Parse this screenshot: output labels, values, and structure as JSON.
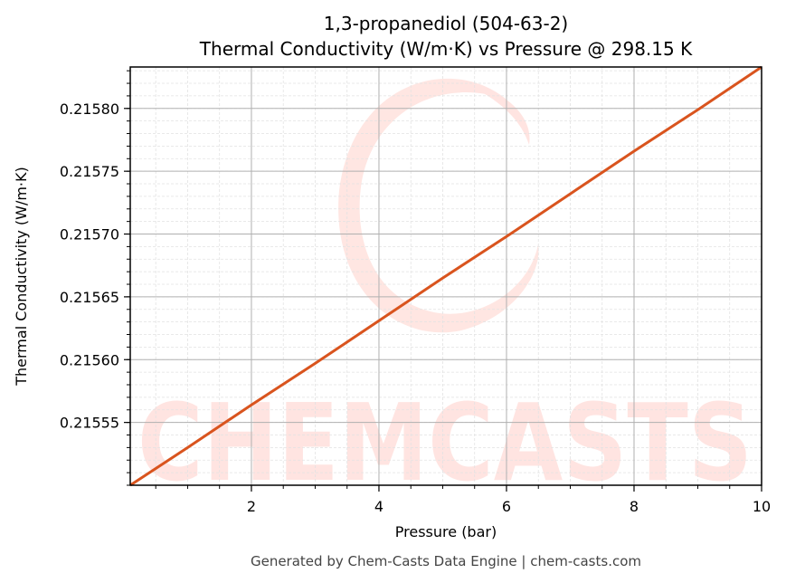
{
  "chart_data": {
    "type": "line",
    "title": "1,3-propanediol (504-63-2)",
    "subtitle": "Thermal Conductivity (W/m·K) vs Pressure @ 298.15 K",
    "xlabel": "Pressure (bar)",
    "ylabel": "Thermal Conductivity (W/m·K)",
    "xlim": [
      0.1,
      10
    ],
    "ylim": [
      0.2155,
      0.215833
    ],
    "x_ticks": [
      2,
      4,
      6,
      8,
      10
    ],
    "x_tick_labels": [
      "2",
      "4",
      "6",
      "8",
      "10"
    ],
    "y_ticks": [
      0.21555,
      0.2156,
      0.21565,
      0.2157,
      0.21575,
      0.2158
    ],
    "y_tick_labels": [
      "0.21555",
      "0.21560",
      "0.21565",
      "0.21570",
      "0.21575",
      "0.21580"
    ],
    "grid": true,
    "legend": null,
    "series": [
      {
        "name": "Thermal Conductivity",
        "color": "#d9541e",
        "x": [
          0.1,
          1,
          2,
          3,
          4,
          5,
          6,
          7,
          8,
          9,
          10
        ],
        "y": [
          0.2155,
          0.21553,
          0.215564,
          0.215597,
          0.215631,
          0.215665,
          0.215698,
          0.215732,
          0.215766,
          0.215799,
          0.215833
        ]
      }
    ],
    "watermark": "CHEMCASTS",
    "footer": "Generated by Chem-Casts Data Engine | chem-casts.com"
  }
}
